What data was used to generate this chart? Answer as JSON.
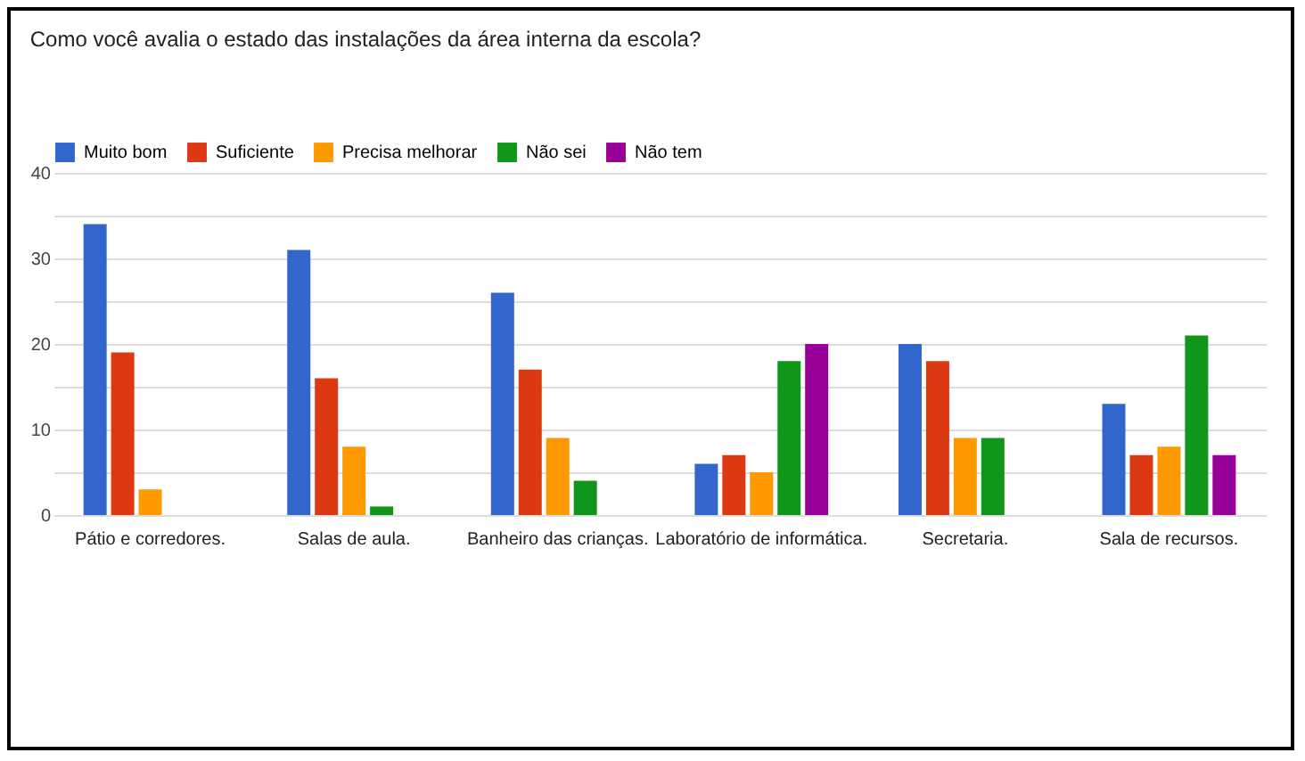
{
  "chart_data": {
    "type": "bar",
    "title": "Como você avalia o estado das instalações da área interna da escola?",
    "categories": [
      "Pátio e corredores.",
      "Salas de aula.",
      "Banheiro das crianças.",
      "Laboratório de informática.",
      "Secretaria.",
      "Sala de recursos."
    ],
    "series": [
      {
        "name": "Muito bom",
        "color": "#3366cc",
        "values": [
          34,
          31,
          26,
          6,
          20,
          13
        ]
      },
      {
        "name": "Suficiente",
        "color": "#dc3912",
        "values": [
          19,
          16,
          17,
          7,
          18,
          7
        ]
      },
      {
        "name": "Precisa melhorar",
        "color": "#ff9900",
        "values": [
          3,
          8,
          9,
          5,
          9,
          8
        ]
      },
      {
        "name": "Não sei",
        "color": "#109618",
        "values": [
          0,
          1,
          4,
          18,
          9,
          21
        ]
      },
      {
        "name": "Não tem",
        "color": "#990099",
        "values": [
          0,
          0,
          0,
          20,
          0,
          7
        ]
      }
    ],
    "ylim": [
      0,
      40
    ],
    "yticks": [
      0,
      {
        "value": 5,
        "label": null
      },
      10,
      {
        "value": 15,
        "label": null
      },
      20,
      {
        "value": 25,
        "label": null
      },
      30,
      {
        "value": 35,
        "label": null
      },
      40
    ],
    "grid": true,
    "legend": "top left"
  }
}
